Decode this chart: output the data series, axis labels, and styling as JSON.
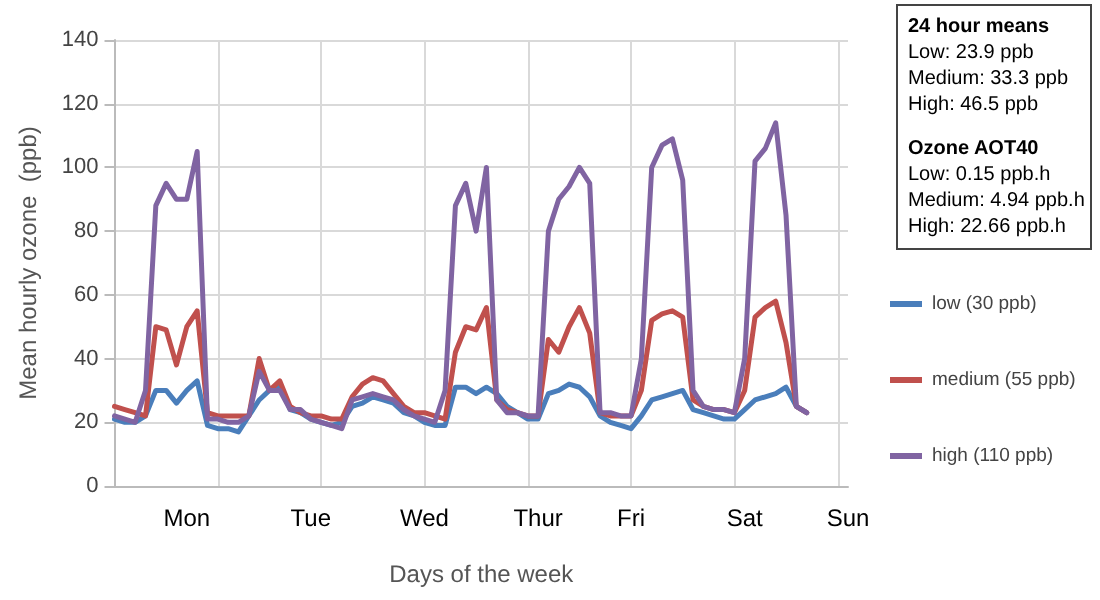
{
  "chart_data": {
    "type": "line",
    "xlabel": "Days of the week",
    "ylabel": "Mean hourly ozone  (ppb)",
    "ylim": [
      0,
      140
    ],
    "yticks": [
      0,
      20,
      40,
      60,
      80,
      100,
      120,
      140
    ],
    "categories": [
      null,
      null,
      null,
      null,
      null,
      null,
      null,
      "Mon",
      null,
      null,
      null,
      null,
      null,
      null,
      null,
      null,
      null,
      null,
      null,
      "Tue",
      null,
      null,
      null,
      null,
      null,
      null,
      null,
      null,
      null,
      null,
      "Wed",
      null,
      null,
      null,
      null,
      null,
      null,
      null,
      null,
      null,
      null,
      "Thur",
      null,
      null,
      null,
      null,
      null,
      null,
      null,
      null,
      "Fri",
      null,
      null,
      null,
      null,
      null,
      null,
      null,
      null,
      null,
      null,
      "Sat",
      null,
      null,
      null,
      null,
      null,
      null,
      null,
      null,
      null,
      "Sun"
    ],
    "grid": true,
    "legend": "right",
    "marker": "none",
    "line_style": "solid",
    "annotations": [
      "24 hour means\nLow: 23.9 ppb\nMedium: 33.3 ppb\nHigh: 46.5 ppb",
      "Ozone AOT40\nLow: 0.15 ppb.h\nMedium: 4.94 ppb.h\nHigh: 22.66 ppb.h"
    ],
    "series": [
      {
        "name": "low (30 ppb)",
        "color": "#4a7ebb",
        "values": [
          21,
          20,
          20,
          22,
          30,
          30,
          26,
          30,
          33,
          19,
          18,
          18,
          17,
          22,
          27,
          30,
          32,
          24,
          23,
          21,
          20,
          19,
          20,
          25,
          26,
          28,
          27,
          26,
          23,
          22,
          20,
          19,
          19,
          31,
          31,
          29,
          31,
          29,
          25,
          23,
          21,
          21,
          29,
          30,
          32,
          31,
          28,
          22,
          20,
          19,
          18,
          22,
          27,
          28,
          29,
          30,
          24,
          23,
          22,
          21,
          21,
          24,
          27,
          28,
          29,
          31,
          25,
          23,
          null,
          null,
          null,
          null
        ]
      },
      {
        "name": "medium (55 ppb)",
        "color": "#c0504d",
        "values": [
          25,
          24,
          23,
          22,
          50,
          49,
          38,
          50,
          55,
          23,
          22,
          22,
          22,
          22,
          40,
          30,
          33,
          25,
          23,
          22,
          22,
          21,
          21,
          28,
          32,
          34,
          33,
          29,
          25,
          23,
          23,
          22,
          21,
          42,
          50,
          49,
          56,
          27,
          24,
          23,
          22,
          22,
          46,
          42,
          50,
          56,
          48,
          23,
          22,
          22,
          22,
          30,
          52,
          54,
          55,
          53,
          27,
          25,
          24,
          24,
          23,
          30,
          53,
          56,
          58,
          45,
          25,
          23,
          null,
          null,
          null,
          null
        ]
      },
      {
        "name": "high (110 ppb)",
        "color": "#8064a2",
        "values": [
          22,
          21,
          20,
          30,
          88,
          95,
          90,
          90,
          105,
          21,
          21,
          20,
          20,
          22,
          36,
          30,
          30,
          24,
          24,
          21,
          20,
          19,
          18,
          27,
          28,
          29,
          28,
          27,
          24,
          22,
          21,
          20,
          30,
          88,
          95,
          80,
          100,
          27,
          23,
          23,
          22,
          22,
          80,
          90,
          94,
          100,
          95,
          23,
          23,
          22,
          22,
          40,
          100,
          107,
          109,
          96,
          30,
          25,
          24,
          24,
          23,
          40,
          102,
          106,
          114,
          85,
          25,
          23,
          null,
          null,
          null,
          null
        ]
      }
    ]
  }
}
